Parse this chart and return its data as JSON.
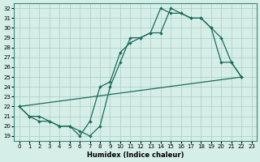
{
  "xlabel": "Humidex (Indice chaleur)",
  "ylabel": "",
  "bg_color": "#d6eee8",
  "line_color": "#1a6b5a",
  "xlim": [
    -0.5,
    23.5
  ],
  "ylim": [
    18.5,
    32.5
  ],
  "xticks": [
    0,
    1,
    2,
    3,
    4,
    5,
    6,
    7,
    8,
    9,
    10,
    11,
    12,
    13,
    14,
    15,
    16,
    17,
    18,
    19,
    20,
    21,
    22,
    23
  ],
  "yticks": [
    19,
    20,
    21,
    22,
    23,
    24,
    25,
    26,
    27,
    28,
    29,
    30,
    31,
    32
  ],
  "line1_x": [
    0,
    1,
    2,
    3,
    4,
    5,
    6,
    7,
    8,
    9,
    10,
    11,
    12,
    13,
    14,
    15,
    16,
    17,
    18,
    19,
    20,
    21,
    22
  ],
  "line1_y": [
    22,
    21,
    20.5,
    20.5,
    20,
    20,
    19,
    20.5,
    24,
    24.5,
    27.5,
    28.5,
    29,
    29.5,
    29.5,
    32,
    31.5,
    31,
    31,
    30,
    26.5,
    26.5,
    25
  ],
  "line2_x": [
    0,
    1,
    2,
    3,
    4,
    5,
    6,
    7,
    8,
    9,
    10,
    11,
    12,
    13,
    14,
    15,
    16,
    17,
    18,
    19,
    20,
    21,
    22
  ],
  "line2_y": [
    22,
    21,
    21,
    20.5,
    20,
    20,
    19.5,
    19,
    20,
    24,
    26.5,
    29,
    29,
    29.5,
    32,
    31.5,
    31.5,
    31,
    31,
    30,
    29,
    26.5,
    25
  ],
  "line3_x": [
    0,
    22
  ],
  "line3_y": [
    22,
    25
  ]
}
